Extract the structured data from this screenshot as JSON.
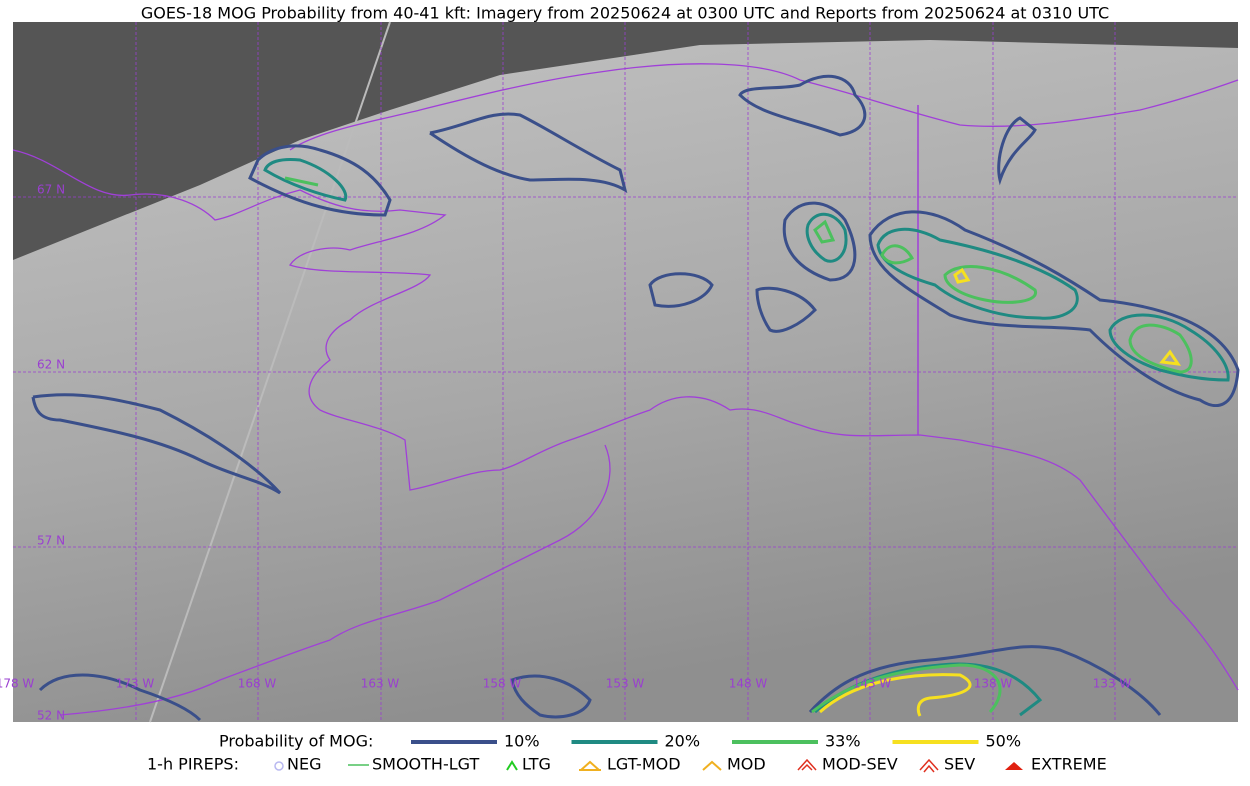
{
  "header": {
    "title": "GOES-18 MOG Probability from 40-41 kft: Imagery from 20250624 at 0300 UTC and Reports from 20250624 at 0310 UTC"
  },
  "map": {
    "lat_labels": [
      "67 N",
      "62 N",
      "57 N",
      "52 N"
    ],
    "lon_labels": [
      "178 W",
      "173 W",
      "168 W",
      "163 W",
      "158 W",
      "153 W",
      "148 W",
      "143 W",
      "138 W",
      "133 W"
    ]
  },
  "legend": {
    "probability": {
      "label": "Probability of MOG:",
      "items": [
        "10%",
        "20%",
        "33%",
        "50%"
      ]
    },
    "pireps": {
      "label": "1-h PIREPS:",
      "items": [
        "NEG",
        "SMOOTH-LGT",
        "LTG",
        "LGT-MOD",
        "MOD",
        "MOD-SEV",
        "SEV",
        "EXTREME"
      ]
    }
  }
}
